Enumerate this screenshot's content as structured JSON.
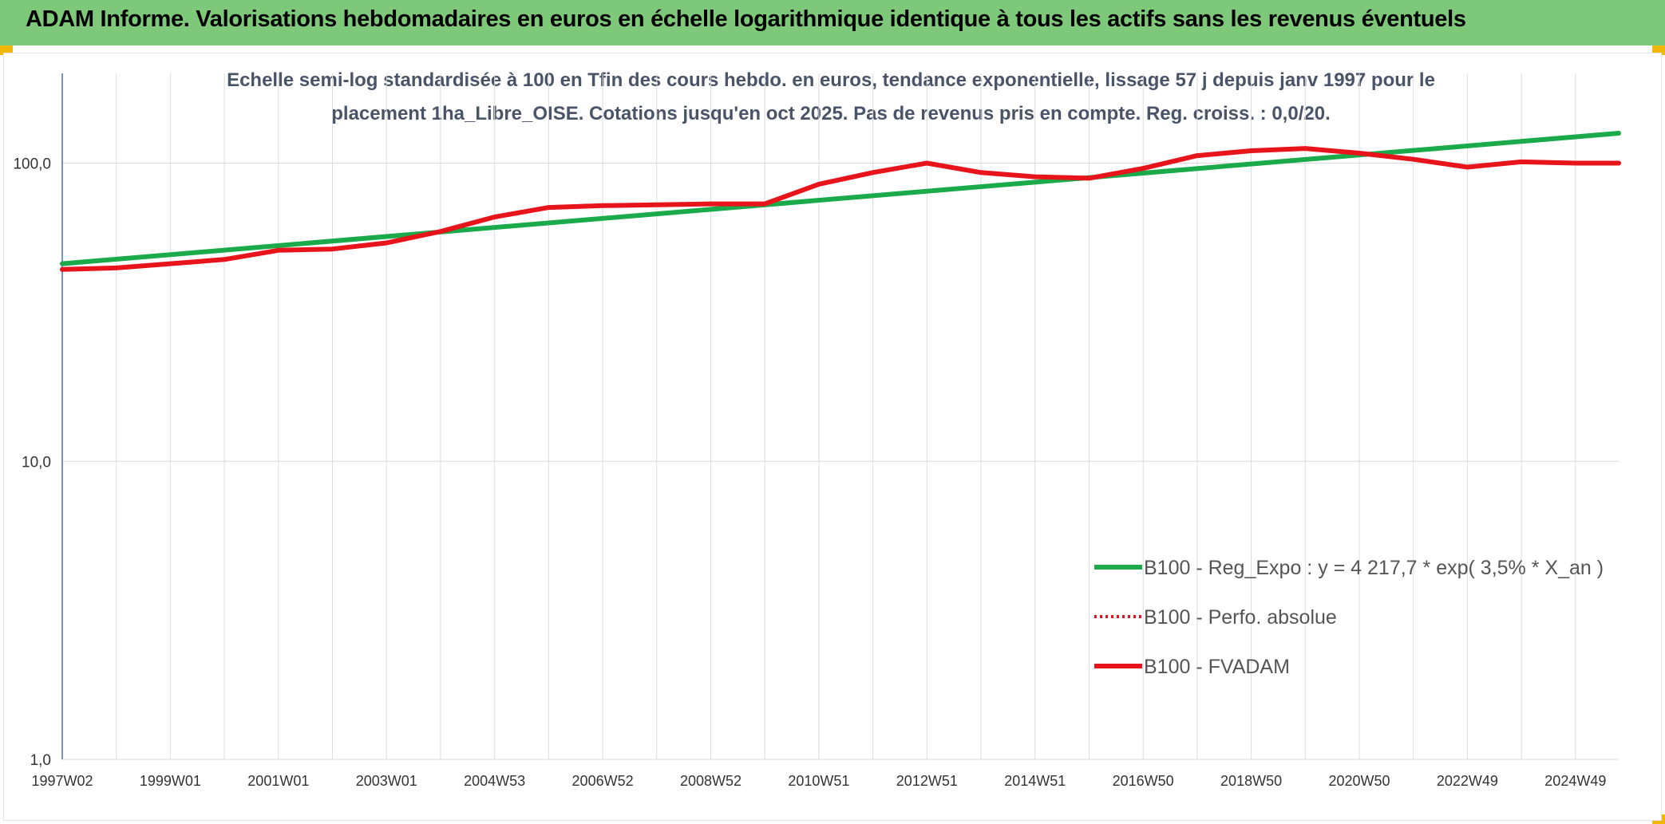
{
  "header": {
    "title": "ADAM Informe. Valorisations hebdomadaires en euros en échelle logarithmique identique à tous les actifs sans les revenus éventuels",
    "background_color": "#7ec87a",
    "corner_color": "#f2b705"
  },
  "chart_data": {
    "type": "line",
    "title_lines": [
      "Echelle semi-log standardisée à 100 en Tfin des cours hebdo. en euros, tendance exponentielle, lissage 57 j depuis janv 1997 pour le",
      "placement 1ha_Libre_OISE. Cotations jusqu'en oct 2025. Pas de revenus pris en compte. Reg. croiss. : 0,0/20."
    ],
    "y_scale": "log",
    "ylim": [
      1,
      200
    ],
    "y_ticks": [
      1,
      10,
      100
    ],
    "y_tick_labels": [
      "1,0",
      "10,0",
      "100,0"
    ],
    "x_start_year": 1997.0,
    "x_end_year": 2025.8,
    "x_tick_labels": [
      "1997W02",
      "1999W01",
      "2001W01",
      "2003W01",
      "2004W53",
      "2006W52",
      "2008W52",
      "2010W51",
      "2012W51",
      "2014W51",
      "2016W50",
      "2018W50",
      "2020W50",
      "2022W49",
      "2024W49"
    ],
    "grid": true,
    "legend_position": "right",
    "series": [
      {
        "name": "B100 - Reg_Expo : y = 4 217,7 * exp( 3,5% *  X_an )",
        "color": "#1aaa4a",
        "style": "solid",
        "x": [
          1997.0,
          2025.8
        ],
        "y": [
          46,
          126
        ]
      },
      {
        "name": "B100 - Perfo. absolue",
        "color": "#e8141b",
        "style": "dotted",
        "x": [],
        "y": []
      },
      {
        "name": "B100 - FVADAM",
        "color": "#e8141b",
        "style": "solid",
        "x": [
          1997.0,
          1998.0,
          1999.0,
          2000.0,
          2001.0,
          2002.0,
          2003.0,
          2004.0,
          2005.0,
          2006.0,
          2007.0,
          2008.0,
          2009.0,
          2010.0,
          2011.0,
          2012.0,
          2013.0,
          2014.0,
          2015.0,
          2016.0,
          2017.0,
          2018.0,
          2019.0,
          2020.0,
          2021.0,
          2022.0,
          2023.0,
          2024.0,
          2025.0,
          2025.8
        ],
        "y": [
          44,
          44.5,
          46,
          47.5,
          51,
          51.5,
          54,
          59,
          66,
          71,
          72,
          72.5,
          73,
          73,
          85,
          93,
          100,
          93,
          90,
          89,
          96,
          106,
          110,
          112,
          108,
          103,
          97,
          101,
          100,
          100
        ]
      }
    ]
  }
}
